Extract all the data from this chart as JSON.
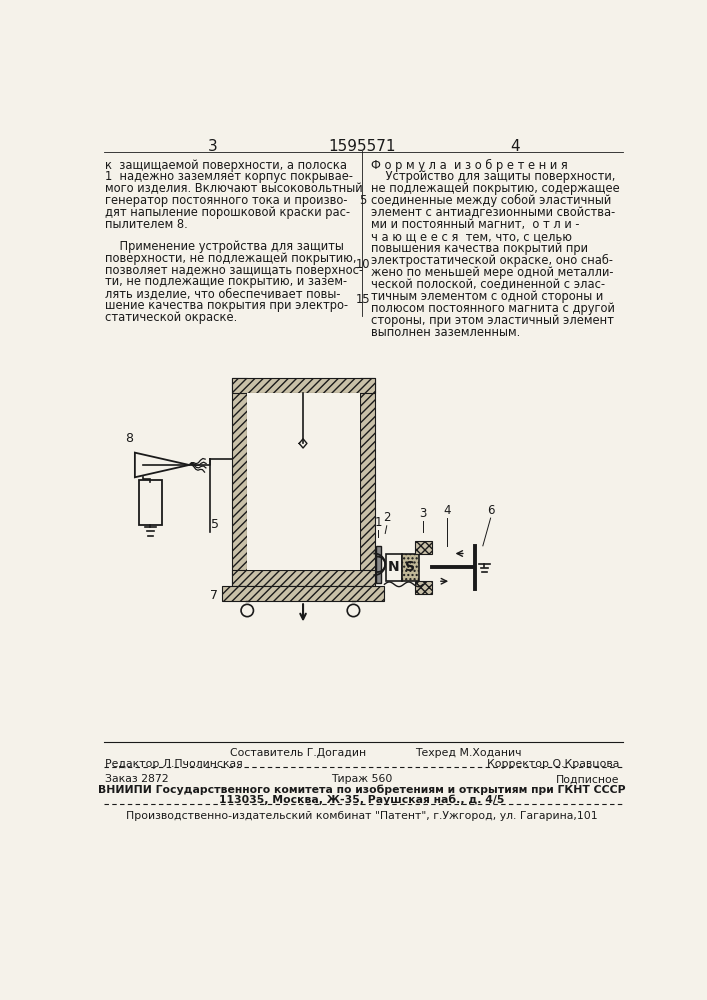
{
  "page_number_left": "3",
  "patent_number": "1595571",
  "page_number_right": "4",
  "left_column_text": [
    "к  защищаемой поверхности, а полоска",
    "1  надежно заземляет корпус покрывае-",
    "мого изделия. Включают высоковольтный",
    "генератор постоянного тока и произво-",
    "дят напыление порошковой краски рас-",
    "пылителем 8."
  ],
  "left_column_text2": [
    "    Применение устройства для защиты",
    "поверхности, не подлежащей покрытию,",
    "позволяет надежно защищать поверхнос-",
    "ти, не подлежащие покрытию, и зазем-",
    "лять изделие, что обеспечивает повы-",
    "шение качества покрытия при электро-",
    "статической окраске."
  ],
  "right_column_header": "Ф о р м у л а  и з о б р е т е н и я",
  "right_column_text": [
    "    Устройство для защиты поверхности,",
    "не подлежащей покрытию, содержащее",
    "соединенные между собой эластичный",
    "элемент с антиадгезионными свойства-",
    "ми и постоянный магнит,  о т л и -",
    "ч а ю щ е е с я  тем, что, с целью",
    "повышения качества покрытий при",
    "электростатической окраске, оно снаб-",
    "жено по меньшей мере одной металли-",
    "ческой полоской, соединенной с элас-",
    "тичным элементом с одной стороны и",
    "полюсом постоянного магнита с другой",
    "стороны, при этом эластичный элемент",
    "выполнен заземленным."
  ],
  "footer_line1_left": "Редактор Л.Пчолинская",
  "footer_line1_center": "Составитель Г.Догадин",
  "footer_line1_center2": "Техред М.Ходанич",
  "footer_line1_right": "Корректор О.Кравцова",
  "footer_line2_left": "Заказ 2872",
  "footer_line2_center": "Тираж 560",
  "footer_line2_right": "Подписное",
  "footer_line3": "ВНИИПИ Государственного комитета по изобретениям и открытиям при ГКНТ СССР",
  "footer_line4": "113035, Москва, Ж-35, Раушская наб., д. 4/5",
  "footer_line5": "Производственно-издательский комбинат \"Патент\", г.Ужгород, ул. Гагарина,101",
  "bg_color": "#f5f2ea",
  "text_color": "#1a1a1a",
  "diagram_color": "#1a1a1a"
}
